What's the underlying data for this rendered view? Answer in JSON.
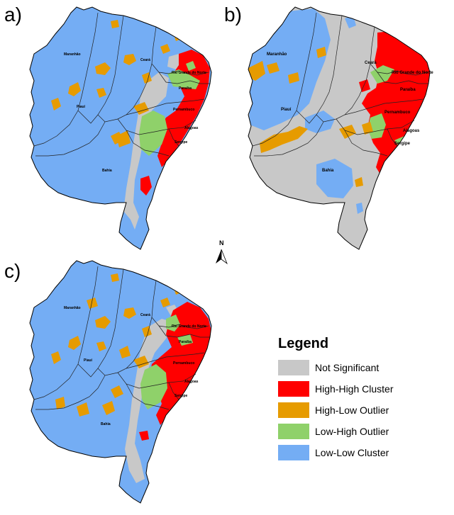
{
  "panels": [
    {
      "label": "a)",
      "states": [
        "Maranhão",
        "Ceará",
        "Rio Grande do Norte",
        "Paraíba",
        "Pernambuco",
        "Piauí",
        "Alagoas",
        "Sergipe",
        "Bahia"
      ]
    },
    {
      "label": "b)",
      "states": [
        "Maranhão",
        "Ceará",
        "Rio Grande do Norte",
        "Paraíba",
        "Pernambuco",
        "Piauí",
        "Alagoas",
        "Sergipe",
        "Bahia"
      ]
    },
    {
      "label": "c)",
      "states": [
        "Maranhão",
        "Ceará",
        "Rio Grande do Norte",
        "Paraíba",
        "Pernambuco",
        "Piauí",
        "Alagoas",
        "Sergipe",
        "Bahia"
      ]
    }
  ],
  "north_arrow": {
    "label": "N"
  },
  "legend": {
    "title": "Legend",
    "items": [
      {
        "label": "Not Significant",
        "color": "#c8c8c8"
      },
      {
        "label": "High-High Cluster",
        "color": "#ff0000"
      },
      {
        "label": "High-Low Outlier",
        "color": "#e69b00"
      },
      {
        "label": "Low-High Outlier",
        "color": "#8fd16a"
      },
      {
        "label": "Low-Low Cluster",
        "color": "#74adf4"
      }
    ]
  }
}
